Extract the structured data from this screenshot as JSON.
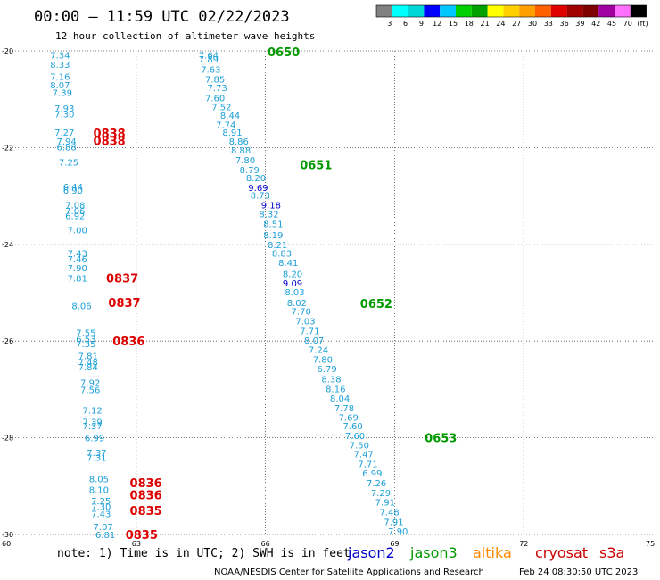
{
  "header": {
    "title": "00:00 — 11:59 UTC 02/22/2023",
    "subtitle": "12 hour collection of altimeter wave heights"
  },
  "color_scale": {
    "labels": [
      "3",
      "6",
      "9",
      "12",
      "15",
      "18",
      "21",
      "24",
      "27",
      "30",
      "33",
      "36",
      "39",
      "42",
      "45",
      "70"
    ],
    "unit": "(ft)",
    "colors": [
      "#808080",
      "#00ffff",
      "#00d8d8",
      "#0000ff",
      "#00c8ff",
      "#00d000",
      "#00a000",
      "#ffff00",
      "#ffd000",
      "#ffa000",
      "#ff6000",
      "#e00000",
      "#a00000",
      "#800000",
      "#a000a0",
      "#ff70ff",
      "#000000"
    ]
  },
  "footer": {
    "note": "note: 1) Time is in UTC; 2) SWH is in feet",
    "satellites": [
      {
        "name": "jason2",
        "color": "#0000cc"
      },
      {
        "name": "jason3",
        "color": "#009900"
      },
      {
        "name": "altika",
        "color": "#ff8800"
      },
      {
        "name": "cryosat",
        "color": "#cc0000"
      },
      {
        "name": "s3a",
        "color": "#cc0000"
      }
    ],
    "credit": "NOAA/NESDIS Center for Satellite Applications and Research",
    "timestamp": "Feb 24 08:30:50 UTC 2023"
  },
  "chart_data": {
    "type": "scatter",
    "xlim": [
      60,
      75
    ],
    "ylim": [
      -30,
      -20
    ],
    "x_ticks": [
      60,
      63,
      66,
      69,
      72,
      75
    ],
    "y_ticks": [
      -20,
      -22,
      -24,
      -26,
      -28,
      -30
    ],
    "grid": true,
    "series": [
      {
        "color": "#1a9fd8",
        "points": [
          {
            "x": 64.45,
            "y": -20.08,
            "v": "7.64"
          },
          {
            "x": 64.45,
            "y": -20.17,
            "v": "7.89"
          },
          {
            "x": 64.5,
            "y": -20.38,
            "v": "7.63"
          },
          {
            "x": 64.6,
            "y": -20.58,
            "v": "7.85"
          },
          {
            "x": 64.65,
            "y": -20.76,
            "v": "7.73"
          },
          {
            "x": 64.6,
            "y": -20.97,
            "v": "7.60"
          },
          {
            "x": 64.75,
            "y": -21.15,
            "v": "7.52"
          },
          {
            "x": 64.95,
            "y": -21.33,
            "v": "8.44"
          },
          {
            "x": 64.85,
            "y": -21.52,
            "v": "7.74"
          },
          {
            "x": 65.0,
            "y": -21.68,
            "v": "8.91"
          },
          {
            "x": 65.15,
            "y": -21.86,
            "v": "8.86"
          },
          {
            "x": 65.2,
            "y": -22.05,
            "v": "8.88"
          },
          {
            "x": 65.3,
            "y": -22.25,
            "v": "7.80"
          },
          {
            "x": 65.4,
            "y": -22.45,
            "v": "8.79"
          },
          {
            "x": 65.55,
            "y": -22.62,
            "v": "8.20"
          },
          {
            "x": 65.65,
            "y": -22.98,
            "v": "8.73"
          },
          {
            "x": 65.85,
            "y": -23.37,
            "v": "8.32"
          },
          {
            "x": 65.95,
            "y": -23.57,
            "v": "8.51"
          },
          {
            "x": 65.95,
            "y": -23.8,
            "v": "8.19"
          },
          {
            "x": 66.05,
            "y": -24.0,
            "v": "8.21"
          },
          {
            "x": 66.15,
            "y": -24.18,
            "v": "8.83"
          },
          {
            "x": 66.3,
            "y": -24.37,
            "v": "8.41"
          },
          {
            "x": 66.4,
            "y": -24.6,
            "v": "8.20"
          },
          {
            "x": 66.45,
            "y": -24.98,
            "v": "8.03"
          },
          {
            "x": 66.5,
            "y": -25.2,
            "v": "8.02"
          },
          {
            "x": 66.6,
            "y": -25.38,
            "v": "7.70"
          },
          {
            "x": 66.7,
            "y": -25.58,
            "v": "7.03"
          },
          {
            "x": 66.8,
            "y": -25.78,
            "v": "7.71"
          },
          {
            "x": 66.9,
            "y": -25.98,
            "v": "8.07"
          },
          {
            "x": 67.0,
            "y": -26.17,
            "v": "7.24"
          },
          {
            "x": 67.1,
            "y": -26.37,
            "v": "7.80"
          },
          {
            "x": 67.2,
            "y": -26.57,
            "v": "6.79"
          },
          {
            "x": 67.3,
            "y": -26.78,
            "v": "8.38"
          },
          {
            "x": 67.4,
            "y": -26.98,
            "v": "8.16"
          },
          {
            "x": 67.5,
            "y": -27.18,
            "v": "8.04"
          },
          {
            "x": 67.6,
            "y": -27.38,
            "v": "7.78"
          },
          {
            "x": 67.7,
            "y": -27.57,
            "v": "7.69"
          },
          {
            "x": 67.8,
            "y": -27.75,
            "v": "7.60"
          },
          {
            "x": 67.85,
            "y": -27.95,
            "v": "7.60"
          },
          {
            "x": 67.95,
            "y": -28.15,
            "v": "7.50"
          },
          {
            "x": 68.05,
            "y": -28.33,
            "v": "7.47"
          },
          {
            "x": 68.15,
            "y": -28.53,
            "v": "7.71"
          },
          {
            "x": 68.25,
            "y": -28.73,
            "v": "6.99"
          },
          {
            "x": 68.35,
            "y": -28.93,
            "v": "7.26"
          },
          {
            "x": 68.45,
            "y": -29.13,
            "v": "7.29"
          },
          {
            "x": 68.55,
            "y": -29.33,
            "v": "7.91"
          },
          {
            "x": 68.65,
            "y": -29.53,
            "v": "7.48"
          },
          {
            "x": 68.75,
            "y": -29.73,
            "v": "7.91"
          },
          {
            "x": 68.85,
            "y": -29.93,
            "v": "7.90"
          },
          {
            "x": 61.0,
            "y": -20.08,
            "v": "7.34"
          },
          {
            "x": 61.0,
            "y": -20.28,
            "v": "8.33"
          },
          {
            "x": 61.0,
            "y": -20.53,
            "v": "7.16"
          },
          {
            "x": 61.0,
            "y": -20.7,
            "v": "8.07"
          },
          {
            "x": 61.05,
            "y": -20.86,
            "v": "7.39"
          },
          {
            "x": 61.1,
            "y": -21.18,
            "v": "7.93"
          },
          {
            "x": 61.1,
            "y": -21.3,
            "v": "7.30"
          },
          {
            "x": 61.1,
            "y": -21.68,
            "v": "7.27"
          },
          {
            "x": 61.15,
            "y": -21.86,
            "v": "7.94"
          },
          {
            "x": 61.15,
            "y": -21.98,
            "v": "6.88"
          },
          {
            "x": 61.2,
            "y": -22.3,
            "v": "7.25"
          },
          {
            "x": 61.3,
            "y": -22.8,
            "v": "6.44"
          },
          {
            "x": 61.3,
            "y": -22.88,
            "v": "6.90"
          },
          {
            "x": 61.35,
            "y": -23.18,
            "v": "7.08"
          },
          {
            "x": 61.35,
            "y": -23.3,
            "v": "7.06"
          },
          {
            "x": 61.35,
            "y": -23.4,
            "v": "6.92"
          },
          {
            "x": 61.4,
            "y": -23.7,
            "v": "7.00"
          },
          {
            "x": 61.4,
            "y": -24.18,
            "v": "7.43"
          },
          {
            "x": 61.4,
            "y": -24.3,
            "v": "7.46"
          },
          {
            "x": 61.4,
            "y": -24.48,
            "v": "7.90"
          },
          {
            "x": 61.4,
            "y": -24.7,
            "v": "7.81"
          },
          {
            "x": 61.5,
            "y": -25.27,
            "v": "8.06"
          },
          {
            "x": 61.6,
            "y": -25.82,
            "v": "7.55"
          },
          {
            "x": 61.6,
            "y": -25.95,
            "v": "6.53"
          },
          {
            "x": 61.6,
            "y": -26.05,
            "v": "7.35"
          },
          {
            "x": 61.65,
            "y": -26.3,
            "v": "7.81"
          },
          {
            "x": 61.65,
            "y": -26.43,
            "v": "7.48"
          },
          {
            "x": 61.65,
            "y": -26.53,
            "v": "7.84"
          },
          {
            "x": 61.7,
            "y": -26.85,
            "v": "7.92"
          },
          {
            "x": 61.7,
            "y": -27.0,
            "v": "7.56"
          },
          {
            "x": 61.75,
            "y": -27.43,
            "v": "7.12"
          },
          {
            "x": 61.75,
            "y": -27.67,
            "v": "7.39"
          },
          {
            "x": 61.75,
            "y": -27.75,
            "v": "7.37"
          },
          {
            "x": 61.8,
            "y": -28.0,
            "v": "6.99"
          },
          {
            "x": 61.85,
            "y": -28.3,
            "v": "7.37"
          },
          {
            "x": 61.85,
            "y": -28.4,
            "v": "7.31"
          },
          {
            "x": 61.9,
            "y": -28.85,
            "v": "8.05"
          },
          {
            "x": 61.9,
            "y": -29.07,
            "v": "8.10"
          },
          {
            "x": 61.95,
            "y": -29.3,
            "v": "7.25"
          },
          {
            "x": 61.95,
            "y": -29.42,
            "v": "7.30"
          },
          {
            "x": 61.95,
            "y": -29.57,
            "v": "7.43"
          },
          {
            "x": 62.0,
            "y": -29.83,
            "v": "7.07"
          },
          {
            "x": 62.05,
            "y": -30.0,
            "v": "6.81"
          }
        ]
      },
      {
        "color": "#0000cc",
        "points": [
          {
            "x": 65.6,
            "y": -22.82,
            "v": "9.69"
          },
          {
            "x": 65.9,
            "y": -23.18,
            "v": "9.18"
          },
          {
            "x": 66.4,
            "y": -24.8,
            "v": "9.09"
          }
        ]
      }
    ],
    "time_labels": [
      {
        "x": 66.05,
        "y": -20.02,
        "text": "0650",
        "color": "#009900"
      },
      {
        "x": 66.8,
        "y": -22.35,
        "text": "0651",
        "color": "#009900"
      },
      {
        "x": 68.2,
        "y": -25.22,
        "text": "0652",
        "color": "#009900"
      },
      {
        "x": 69.7,
        "y": -28.0,
        "text": "0653",
        "color": "#009900"
      },
      {
        "x": 62.0,
        "y": -21.7,
        "text": "0838",
        "color": "#dd0000"
      },
      {
        "x": 62.0,
        "y": -21.85,
        "text": "0838",
        "color": "#dd0000"
      },
      {
        "x": 62.3,
        "y": -24.7,
        "text": "0837",
        "color": "#dd0000"
      },
      {
        "x": 62.35,
        "y": -25.2,
        "text": "0837",
        "color": "#dd0000"
      },
      {
        "x": 62.45,
        "y": -26.0,
        "text": "0836",
        "color": "#dd0000"
      },
      {
        "x": 62.85,
        "y": -28.93,
        "text": "0836",
        "color": "#dd0000"
      },
      {
        "x": 62.85,
        "y": -29.18,
        "text": "0836",
        "color": "#dd0000"
      },
      {
        "x": 62.85,
        "y": -29.5,
        "text": "0835",
        "color": "#dd0000"
      },
      {
        "x": 62.75,
        "y": -30.0,
        "text": "0835",
        "color": "#dd0000"
      }
    ]
  }
}
